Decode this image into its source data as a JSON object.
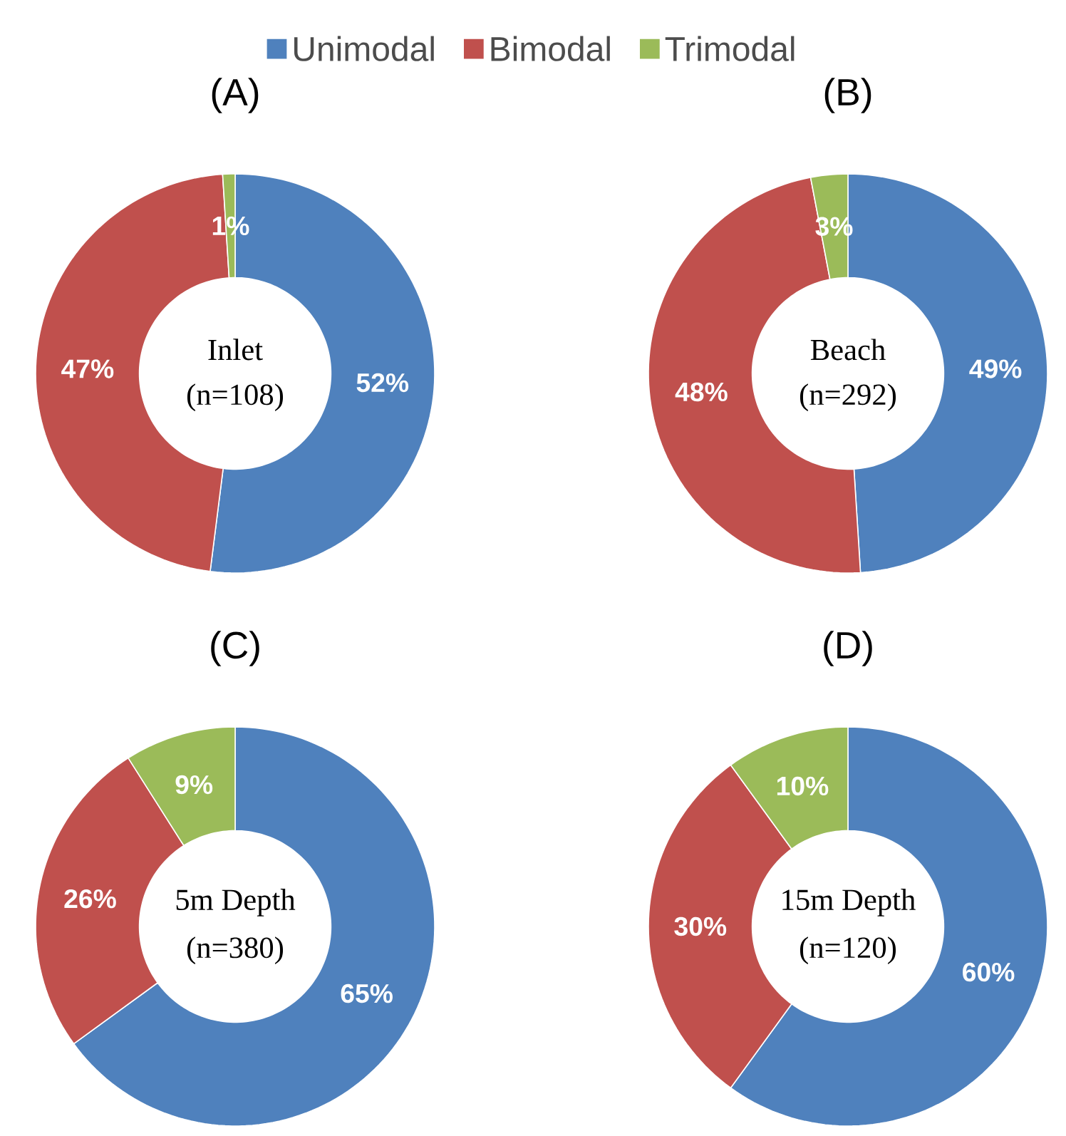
{
  "chart_data": [
    {
      "type": "donut",
      "title": "(A)",
      "categories": [
        "Unimodal",
        "Bimodal",
        "Trimodal"
      ],
      "values": [
        52,
        47,
        1
      ],
      "colors": [
        "#4f81bd",
        "#c0504d",
        "#9bbb59"
      ],
      "value_labels": [
        "52%",
        "47%",
        "1%"
      ],
      "annotations": [
        "Inlet",
        "(n=108)"
      ],
      "legend": "top"
    },
    {
      "type": "donut",
      "title": "(B)",
      "categories": [
        null,
        null,
        null
      ],
      "values": [
        49,
        48,
        3
      ],
      "colors": [
        "#4f81bd",
        "#c0504d",
        "#9bbb59"
      ],
      "value_labels": [
        "49%",
        "48%",
        "3%"
      ],
      "annotations": [
        "Beach",
        "(n=292)"
      ]
    },
    {
      "type": "donut",
      "title": "(C)",
      "categories": [
        null,
        null,
        null
      ],
      "values": [
        65,
        26,
        9
      ],
      "colors": [
        "#4f81bd",
        "#c0504d",
        "#9bbb59"
      ],
      "value_labels": [
        "65%",
        "26%",
        "9%"
      ],
      "annotations": [
        "5m Depth",
        "(n=380)"
      ]
    },
    {
      "type": "donut",
      "title": "(D)",
      "categories": [
        null,
        null,
        null
      ],
      "values": [
        60,
        30,
        10
      ],
      "colors": [
        "#4f81bd",
        "#c0504d",
        "#9bbb59"
      ],
      "value_labels": [
        "60%",
        "30%",
        "10%"
      ],
      "annotations": [
        "15m Depth",
        "(n=120)"
      ]
    }
  ]
}
